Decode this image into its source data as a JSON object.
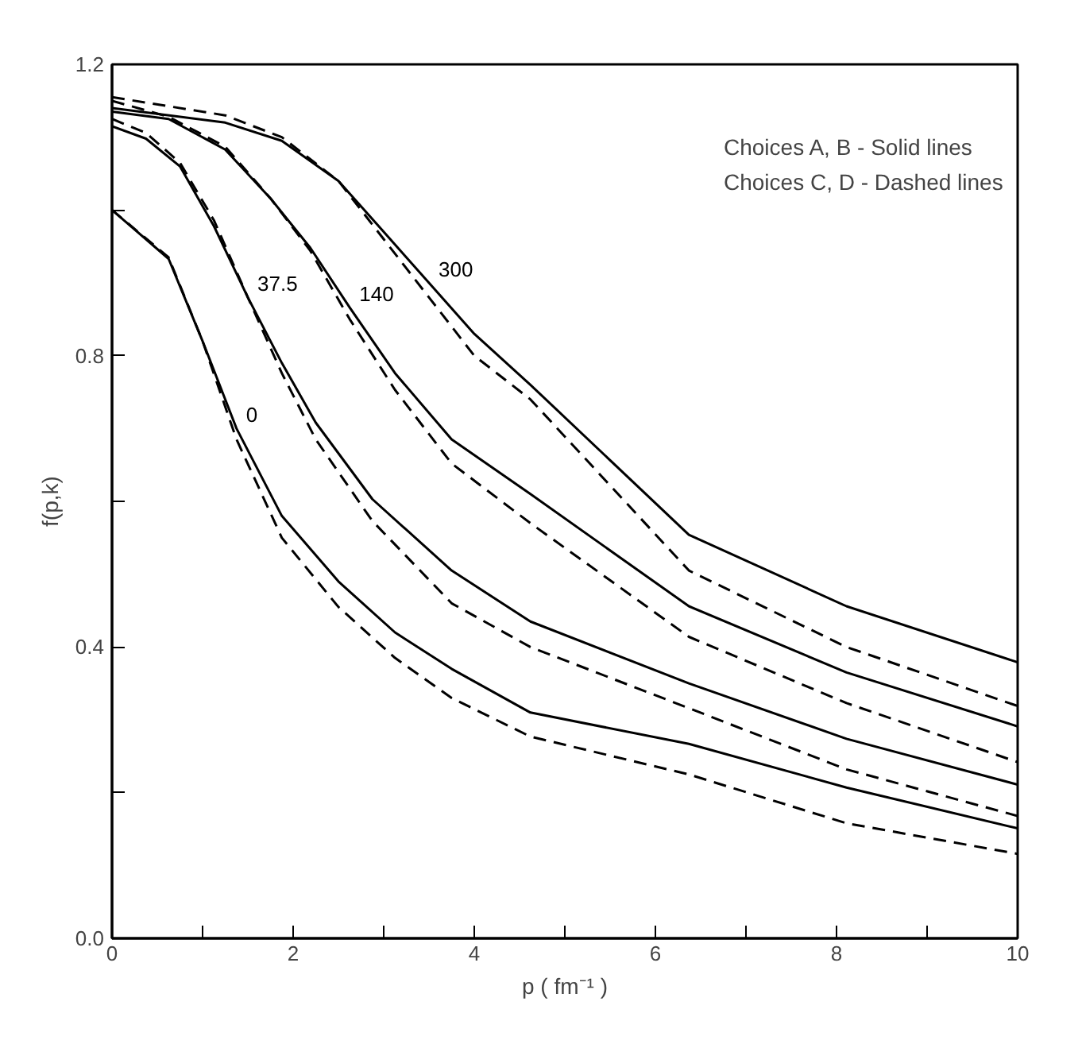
{
  "chart_data": {
    "type": "line",
    "xlabel": "p ( fm⁻¹ )",
    "ylabel": "f(p,k)",
    "xlim": [
      0,
      10
    ],
    "ylim": [
      0,
      1.2
    ],
    "xticks": [
      0,
      {
        "value": 1,
        "label": null
      },
      2,
      {
        "value": 3,
        "label": null
      },
      4,
      {
        "value": 5,
        "label": null
      },
      6,
      {
        "value": 7,
        "label": null
      },
      8,
      {
        "value": 9,
        "label": null
      },
      10
    ],
    "yticks": [
      {
        "value": 0,
        "label": "0.0"
      },
      {
        "value": 0.2,
        "label": null
      },
      0.4,
      {
        "value": 0.6,
        "label": null
      },
      0.8,
      {
        "value": 1.0,
        "label": null
      },
      1.2
    ],
    "grid": false,
    "marker": "none",
    "series": [
      {
        "name": "300",
        "color": "#000000",
        "line_style": "solid",
        "x": [
          0,
          1.25,
          1.875,
          2.5,
          3.0,
          3.5,
          4.0,
          4.62,
          6.37,
          8.11,
          10
        ],
        "values": [
          1.14,
          1.12,
          1.095,
          1.04,
          0.97,
          0.9,
          0.83,
          0.76,
          0.554,
          0.456,
          0.379
        ]
      },
      {
        "color": "#000000",
        "line_style": "dashed",
        "x": [
          0,
          1.25,
          1.875,
          2.5,
          3.0,
          3.5,
          4.0,
          4.62,
          6.37,
          8.11,
          10
        ],
        "values": [
          1.155,
          1.13,
          1.1,
          1.04,
          0.96,
          0.88,
          0.8,
          0.74,
          0.505,
          0.4,
          0.319
        ]
      },
      {
        "name": "140",
        "color": "#000000",
        "line_style": "solid",
        "x": [
          0,
          0.625,
          1.25,
          1.75,
          2.19,
          2.625,
          3.125,
          3.75,
          4.62,
          6.37,
          8.11,
          10
        ],
        "values": [
          1.135,
          1.125,
          1.083,
          1.016,
          0.948,
          0.866,
          0.776,
          0.685,
          0.61,
          0.456,
          0.365,
          0.291
        ]
      },
      {
        "color": "#000000",
        "line_style": "dashed",
        "x": [
          0,
          0.625,
          1.25,
          1.75,
          2.19,
          2.625,
          3.125,
          3.75,
          4.62,
          6.37,
          8.11,
          10
        ],
        "values": [
          1.15,
          1.128,
          1.087,
          1.016,
          0.944,
          0.85,
          0.753,
          0.652,
          0.57,
          0.414,
          0.323,
          0.242
        ]
      },
      {
        "name": "37.5",
        "color": "#000000",
        "line_style": "solid",
        "x": [
          0,
          0.375,
          0.75,
          1.125,
          1.5,
          1.875,
          2.25,
          2.875,
          3.75,
          4.62,
          6.37,
          8.11,
          10
        ],
        "values": [
          1.115,
          1.098,
          1.06,
          0.978,
          0.88,
          0.79,
          0.708,
          0.603,
          0.505,
          0.435,
          0.35,
          0.274,
          0.211
        ]
      },
      {
        "color": "#000000",
        "line_style": "dashed",
        "x": [
          0,
          0.375,
          0.75,
          1.125,
          1.5,
          1.875,
          2.25,
          2.875,
          3.75,
          4.62,
          6.37,
          8.11,
          10
        ],
        "values": [
          1.125,
          1.106,
          1.065,
          0.986,
          0.88,
          0.776,
          0.685,
          0.573,
          0.46,
          0.4,
          0.316,
          0.232,
          0.168
        ]
      },
      {
        "name": "0",
        "color": "#000000",
        "line_style": "solid",
        "x": [
          0,
          0.625,
          1.0,
          1.375,
          1.875,
          2.5,
          3.125,
          3.75,
          4.62,
          6.37,
          8.11,
          10
        ],
        "values": [
          1.0,
          0.933,
          0.82,
          0.7,
          0.58,
          0.49,
          0.42,
          0.37,
          0.31,
          0.267,
          0.207,
          0.151
        ]
      },
      {
        "color": "#000000",
        "line_style": "dashed",
        "x": [
          0,
          0.625,
          1.0,
          1.375,
          1.875,
          2.5,
          3.125,
          3.75,
          4.62,
          6.37,
          8.11,
          10
        ],
        "values": [
          1.0,
          0.935,
          0.82,
          0.685,
          0.55,
          0.455,
          0.385,
          0.33,
          0.277,
          0.225,
          0.158,
          0.116
        ]
      }
    ],
    "annotations": [
      "Choices A, B - Solid lines",
      "Choices C, D - Dashed lines"
    ]
  }
}
